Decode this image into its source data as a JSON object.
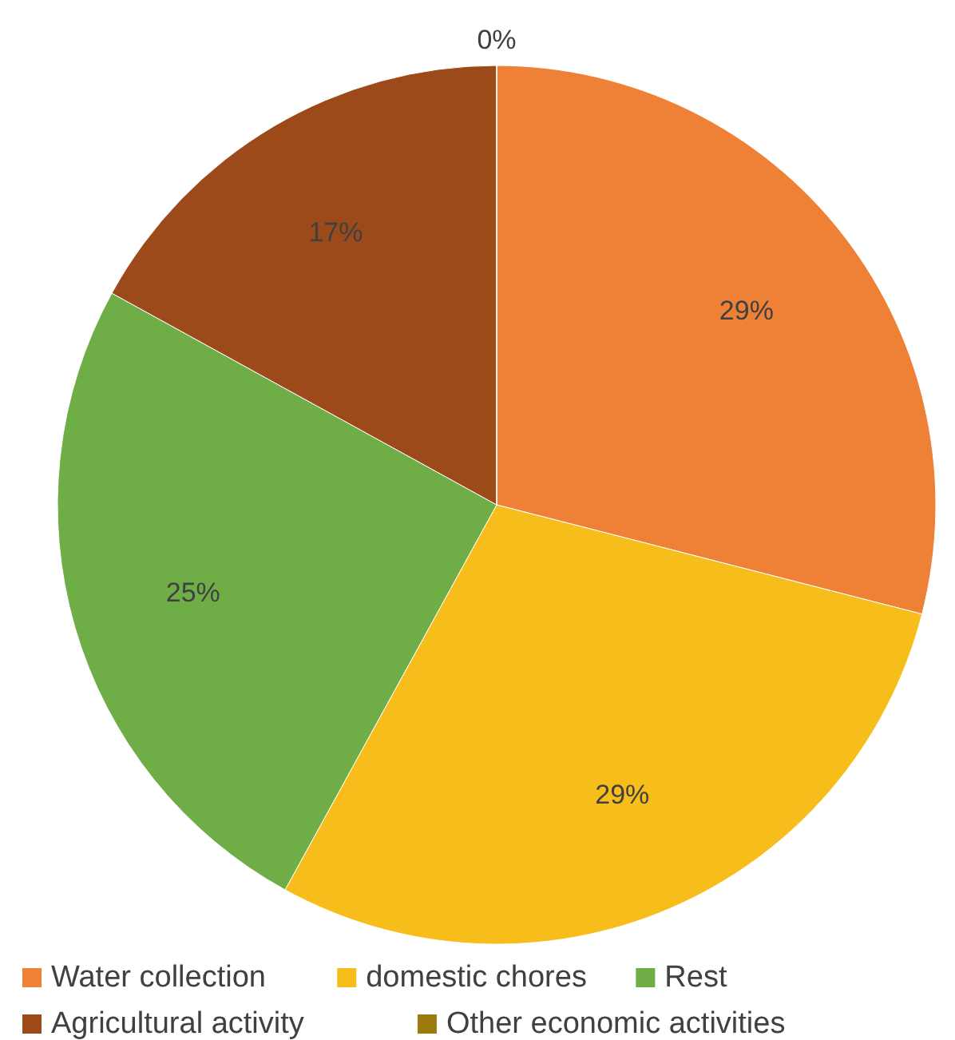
{
  "chart_data": {
    "type": "pie",
    "categories": [
      "Water collection",
      "domestic chores",
      "Rest",
      "Agricultural activity",
      "Other economic activities"
    ],
    "values": [
      29,
      29,
      25,
      17,
      0
    ],
    "value_labels": [
      "29%",
      "29%",
      "25%",
      "17%",
      "0%"
    ],
    "colors": [
      "#ee8136",
      "#f7bd1a",
      "#6fad47",
      "#9d4a1b",
      "#9c7a0c"
    ],
    "legend": "bottom"
  }
}
